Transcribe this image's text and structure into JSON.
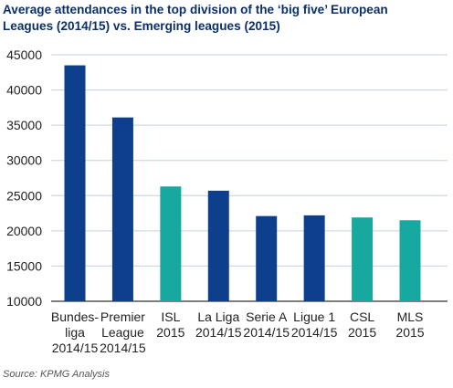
{
  "title_lines": [
    "Average attendances in the top division of the ‘big five’ European",
    "Leagues (2014/15) vs. Emerging leagues (2015)"
  ],
  "source": "Source: KPMG Analysis",
  "colors": {
    "big_five": "#0d3f8c",
    "emerging": "#17a8a0",
    "grid": "#c5d0dd",
    "axis_text": "#222222",
    "title": "#0b2f6b"
  },
  "chart_data": {
    "type": "bar",
    "title": "Average attendances in the top division of the ‘big five’ European Leagues (2014/15) vs. Emerging leagues (2015)",
    "xlabel": "",
    "ylabel": "",
    "ylim": [
      10000,
      45000
    ],
    "yticks": [
      10000,
      15000,
      20000,
      25000,
      30000,
      35000,
      40000,
      45000
    ],
    "grid": true,
    "categories": [
      [
        "Bundes-",
        "liga",
        "2014/15"
      ],
      [
        "Premier",
        "League",
        "2014/15"
      ],
      [
        "ISL",
        "2015"
      ],
      [
        "La Liga",
        "2014/15"
      ],
      [
        "Serie A",
        "2014/15"
      ],
      [
        "Ligue 1",
        "2014/15"
      ],
      [
        "CSL",
        "2015"
      ],
      [
        "MLS",
        "2015"
      ]
    ],
    "values": [
      43500,
      36100,
      26300,
      25700,
      22100,
      22200,
      21900,
      21500
    ],
    "groups": [
      "big_five",
      "big_five",
      "emerging",
      "big_five",
      "big_five",
      "big_five",
      "emerging",
      "emerging"
    ]
  }
}
